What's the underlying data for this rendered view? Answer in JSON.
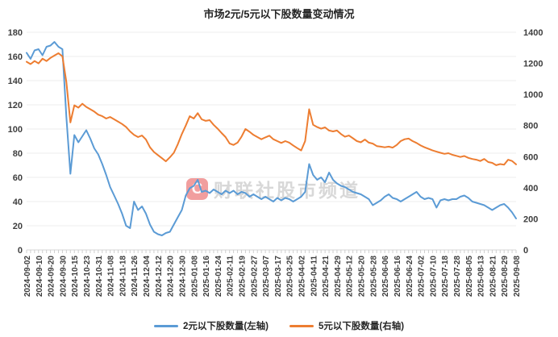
{
  "title": "市场2元/5元以下股数量变动情况",
  "watermark": {
    "logo_text": "C",
    "text": "财联社股市频道"
  },
  "colors": {
    "blue": "#5B9BD5",
    "orange": "#ED7D31",
    "grid": "#ececec",
    "axis_line": "#d6d6d6",
    "tick": "#cfcfcf"
  },
  "chart_data": {
    "type": "line",
    "title": "市场2元/5元以下股数量变动情况",
    "grid": true,
    "legend_position": "bottom",
    "x_tick_labels": [
      "2024-09-02",
      "2024-09-10",
      "2024-09-20",
      "2024-09-30",
      "2024-10-15",
      "2024-10-23",
      "2024-10-31",
      "2024-11-08",
      "2024-11-18",
      "2024-11-26",
      "2024-12-04",
      "2024-12-12",
      "2024-12-20",
      "2024-12-30",
      "2025-01-08",
      "2025-01-16",
      "2025-01-24",
      "2025-02-11",
      "2025-02-19",
      "2025-02-27",
      "2025-03-07",
      "2025-03-17",
      "2025-03-25",
      "2025-04-02",
      "2025-04-11",
      "2025-04-21",
      "2025-04-29",
      "2025-05-12",
      "2025-05-20",
      "2025-05-28",
      "2025-06-06",
      "2025-06-16",
      "2025-06-24",
      "2025-07-02",
      "2025-07-10",
      "2025-07-18",
      "2025-07-28",
      "2025-08-05",
      "2025-08-13",
      "2025-08-21",
      "2025-08-29",
      "2025-09-08"
    ],
    "left_axis": {
      "min": 0,
      "max": 180,
      "ticks": [
        0,
        20,
        40,
        60,
        80,
        100,
        120,
        140,
        160,
        180
      ]
    },
    "right_axis": {
      "min": 0,
      "max": 1400,
      "ticks": [
        0,
        200,
        400,
        600,
        800,
        1000,
        1200,
        1400
      ]
    },
    "series": [
      {
        "name": "2元以下股数量(左轴)",
        "axis": "left",
        "color": "#5B9BD5",
        "values": [
          163,
          158,
          165,
          166,
          161,
          168,
          169,
          172,
          168,
          166,
          110,
          63,
          95,
          89,
          94,
          99,
          92,
          84,
          79,
          71,
          62,
          52,
          45,
          38,
          30,
          20,
          18,
          40,
          33,
          36,
          30,
          21,
          15,
          13,
          12,
          14,
          15,
          21,
          27,
          33,
          45,
          51,
          53,
          58,
          48,
          49,
          47,
          50,
          48,
          46,
          49,
          47,
          49,
          46,
          48,
          47,
          44,
          46,
          44,
          42,
          44,
          42,
          40,
          43,
          41,
          43,
          42,
          40,
          42,
          44,
          48,
          71,
          62,
          58,
          60,
          56,
          64,
          58,
          55,
          53,
          52,
          50,
          48,
          47,
          46,
          44,
          42,
          37,
          39,
          41,
          44,
          46,
          43,
          42,
          40,
          42,
          44,
          46,
          48,
          44,
          42,
          43,
          42,
          35,
          41,
          42,
          41,
          42,
          42,
          44,
          45,
          43,
          40,
          39,
          38,
          37,
          35,
          33,
          35,
          37,
          38,
          35,
          31,
          26
        ]
      },
      {
        "name": "5元以下股数量(右轴)",
        "axis": "right",
        "color": "#ED7D31",
        "values": [
          1210,
          1195,
          1215,
          1200,
          1230,
          1215,
          1235,
          1250,
          1265,
          1245,
          1080,
          820,
          930,
          915,
          940,
          920,
          905,
          890,
          870,
          860,
          845,
          855,
          840,
          825,
          810,
          790,
          762,
          740,
          726,
          736,
          710,
          660,
          630,
          610,
          590,
          570,
          596,
          625,
          680,
          745,
          800,
          860,
          845,
          880,
          840,
          830,
          835,
          805,
          780,
          752,
          726,
          685,
          675,
          690,
          728,
          778,
          760,
          740,
          726,
          712,
          724,
          735,
          712,
          700,
          688,
          700,
          690,
          672,
          655,
          640,
          700,
          905,
          805,
          790,
          780,
          788,
          768,
          762,
          768,
          745,
          728,
          736,
          718,
          700,
          692,
          710,
          690,
          684,
          668,
          664,
          660,
          664,
          658,
          675,
          700,
          712,
          716,
          700,
          688,
          672,
          660,
          650,
          640,
          632,
          625,
          618,
          622,
          612,
          605,
          598,
          604,
          592,
          585,
          580,
          572,
          585,
          565,
          560,
          545,
          552,
          548,
          580,
          572,
          550
        ]
      }
    ]
  }
}
